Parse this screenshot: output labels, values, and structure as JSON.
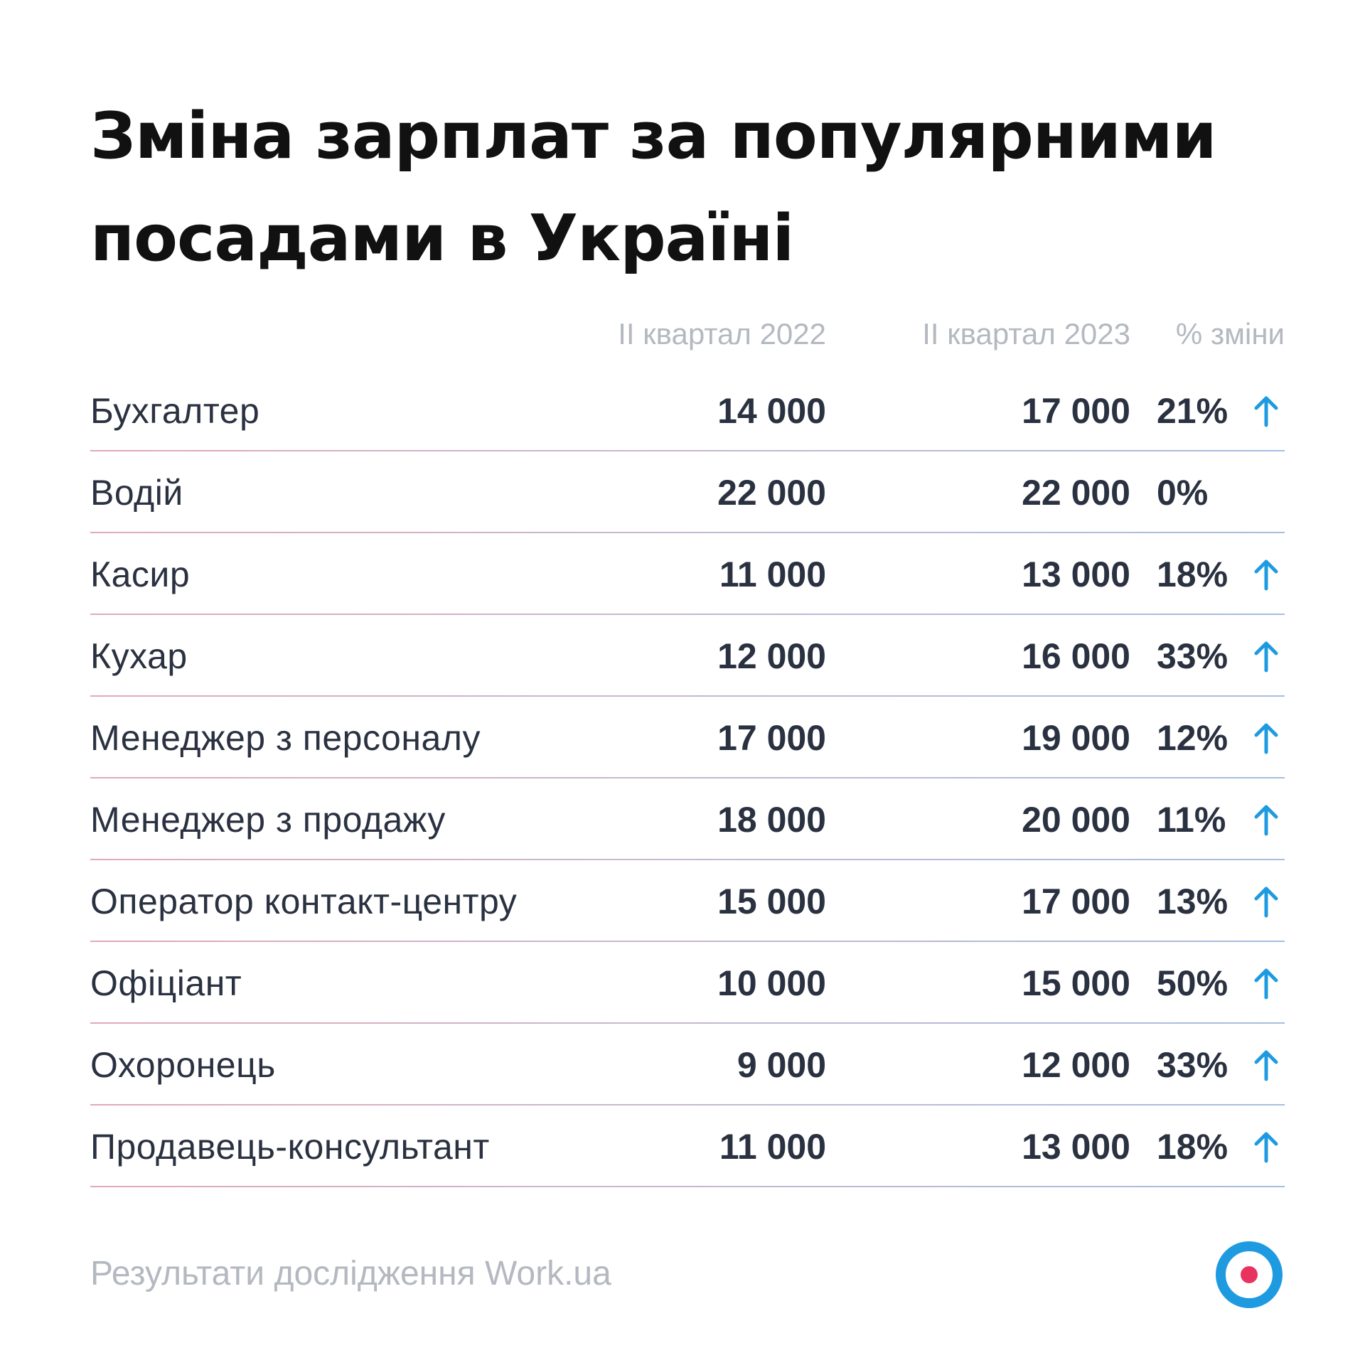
{
  "title_line1": "Зміна зарплат за популярними",
  "title_line2": "посадами в Україні",
  "chart_data": {
    "type": "table",
    "title": "Зміна зарплат за популярними посадами в Україні",
    "columns": [
      "II квартал 2022",
      "II квартал 2023",
      "% зміни"
    ],
    "rows": [
      {
        "position": "Бухгалтер",
        "q2_2022": "14 000",
        "q2_2023": "17 000",
        "change": "21%",
        "up": true
      },
      {
        "position": "Водій",
        "q2_2022": "22 000",
        "q2_2023": "22 000",
        "change": "0%",
        "up": false
      },
      {
        "position": "Касир",
        "q2_2022": "11 000",
        "q2_2023": "13 000",
        "change": "18%",
        "up": true
      },
      {
        "position": "Кухар",
        "q2_2022": "12 000",
        "q2_2023": "16 000",
        "change": "33%",
        "up": true
      },
      {
        "position": "Менеджер з персоналу",
        "q2_2022": "17 000",
        "q2_2023": "19 000",
        "change": "12%",
        "up": true
      },
      {
        "position": "Менеджер з продажу",
        "q2_2022": "18 000",
        "q2_2023": "20 000",
        "change": "11%",
        "up": true
      },
      {
        "position": "Оператор контакт-центру",
        "q2_2022": "15 000",
        "q2_2023": "17 000",
        "change": "13%",
        "up": true
      },
      {
        "position": "Офіціант",
        "q2_2022": "10 000",
        "q2_2023": "15 000",
        "change": "50%",
        "up": true
      },
      {
        "position": "Охоронець",
        "q2_2022": "9 000",
        "q2_2023": "12 000",
        "change": "33%",
        "up": true
      },
      {
        "position": "Продавець-консультант",
        "q2_2022": "11 000",
        "q2_2023": "13 000",
        "change": "18%",
        "up": true
      }
    ]
  },
  "footer": "Результати дослідження Work.ua",
  "colors": {
    "arrow": "#1e9be0",
    "logo_ring": "#1e9be0",
    "logo_dot": "#e8325f",
    "header_text": "#b4b8c0"
  },
  "icons": {
    "arrow": "arrow-up-icon",
    "logo": "work-ua-logo-icon"
  }
}
